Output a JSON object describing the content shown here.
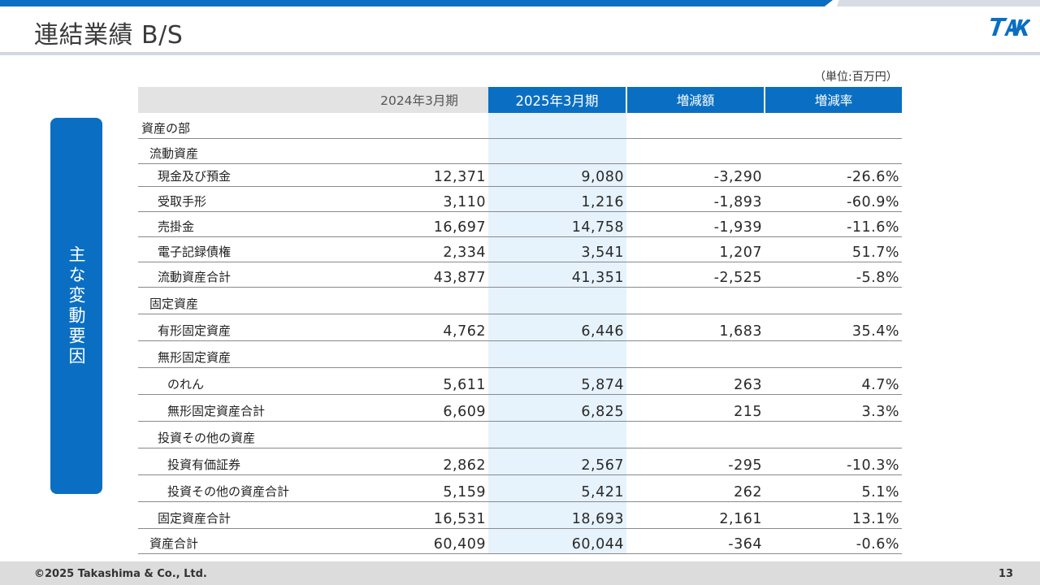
{
  "title": "連結業績 B/S",
  "logo_text": "TAK",
  "unit_note": "（単位:百万円）",
  "side_label": "主な変動要因",
  "table": {
    "headers": [
      "",
      "2024年3月期",
      "2025年3月期",
      "増減額",
      "増減率"
    ],
    "rows": [
      {
        "label": "資産の部",
        "level": 0,
        "values": [
          "",
          "",
          "",
          ""
        ]
      },
      {
        "label": "流動資産",
        "level": 1,
        "values": [
          "",
          "",
          "",
          ""
        ]
      },
      {
        "label": "現金及び預金",
        "level": 2,
        "values": [
          "12,371",
          "9,080",
          "-3,290",
          "-26.6%"
        ]
      },
      {
        "label": "受取手形",
        "level": 2,
        "values": [
          "3,110",
          "1,216",
          "-1,893",
          "-60.9%"
        ]
      },
      {
        "label": "売掛金",
        "level": 2,
        "values": [
          "16,697",
          "14,758",
          "-1,939",
          "-11.6%"
        ]
      },
      {
        "label": "電子記録債権",
        "level": 2,
        "values": [
          "2,334",
          "3,541",
          "1,207",
          "51.7%"
        ]
      },
      {
        "label": "流動資産合計",
        "level": 2,
        "values": [
          "43,877",
          "41,351",
          "-2,525",
          "-5.8%"
        ]
      },
      {
        "label": "固定資産",
        "level": 1,
        "values": [
          "",
          "",
          "",
          ""
        ]
      },
      {
        "label": "有形固定資産",
        "level": 2,
        "values": [
          "4,762",
          "6,446",
          "1,683",
          "35.4%"
        ]
      },
      {
        "label": "無形固定資産",
        "level": 2,
        "values": [
          "",
          "",
          "",
          ""
        ]
      },
      {
        "label": "のれん",
        "level": 3,
        "values": [
          "5,611",
          "5,874",
          "263",
          "4.7%"
        ]
      },
      {
        "label": "無形固定資産合計",
        "level": 3,
        "values": [
          "6,609",
          "6,825",
          "215",
          "3.3%"
        ]
      },
      {
        "label": "投資その他の資産",
        "level": 2,
        "values": [
          "",
          "",
          "",
          ""
        ]
      },
      {
        "label": "投資有価証券",
        "level": 3,
        "values": [
          "2,862",
          "2,567",
          "-295",
          "-10.3%"
        ]
      },
      {
        "label": "投資その他の資産合計",
        "level": 3,
        "values": [
          "5,159",
          "5,421",
          "262",
          "5.1%"
        ]
      },
      {
        "label": "固定資産合計",
        "level": 2,
        "values": [
          "16,531",
          "18,693",
          "2,161",
          "13.1%"
        ]
      },
      {
        "label": "資産合計",
        "level": 1,
        "values": [
          "60,409",
          "60,044",
          "-364",
          "-0.6%"
        ]
      }
    ]
  },
  "footer": {
    "copyright": "©2025 Takashima & Co., Ltd.",
    "page_number": "13"
  },
  "colors": {
    "accent": "#0a6fc2",
    "highlight_column": "#e6f2fc",
    "header_grey": "#e3e3e3"
  }
}
